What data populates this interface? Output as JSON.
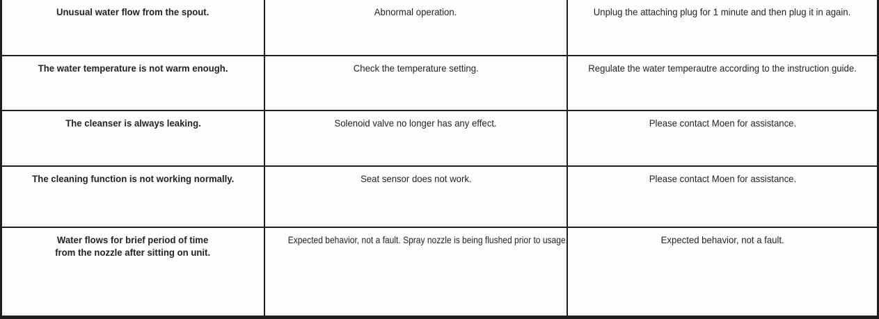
{
  "table": {
    "description": "Troubleshooting table: problem, cause, solution",
    "rows": [
      {
        "problem": "Unusual water flow from the spout.",
        "cause": "Abnormal operation.",
        "solution": "Unplug the attaching plug for 1 minute and then plug it in again."
      },
      {
        "problem": "The water temperature is not warm enough.",
        "cause": "Check the temperature setting.",
        "solution": "Regulate the water temperautre according to the instruction guide."
      },
      {
        "problem": "The cleanser is always leaking.",
        "cause": "Solenoid valve no longer has any effect.",
        "solution": "Please contact Moen for assistance."
      },
      {
        "problem": "The cleaning function is not working normally.",
        "cause": "Seat sensor does not work.",
        "solution": "Please contact Moen for assistance."
      },
      {
        "problem": "Water flows for brief period of time\nfrom the nozzle after sitting on unit.",
        "cause": "Expected behavior, not a fault. Spray nozzle is being flushed prior to usage.",
        "solution": "Expected behavior, not a fault."
      }
    ]
  },
  "colors": {
    "border": "#1e1e1e",
    "text": "#262224",
    "background": "#fdfdfd"
  }
}
